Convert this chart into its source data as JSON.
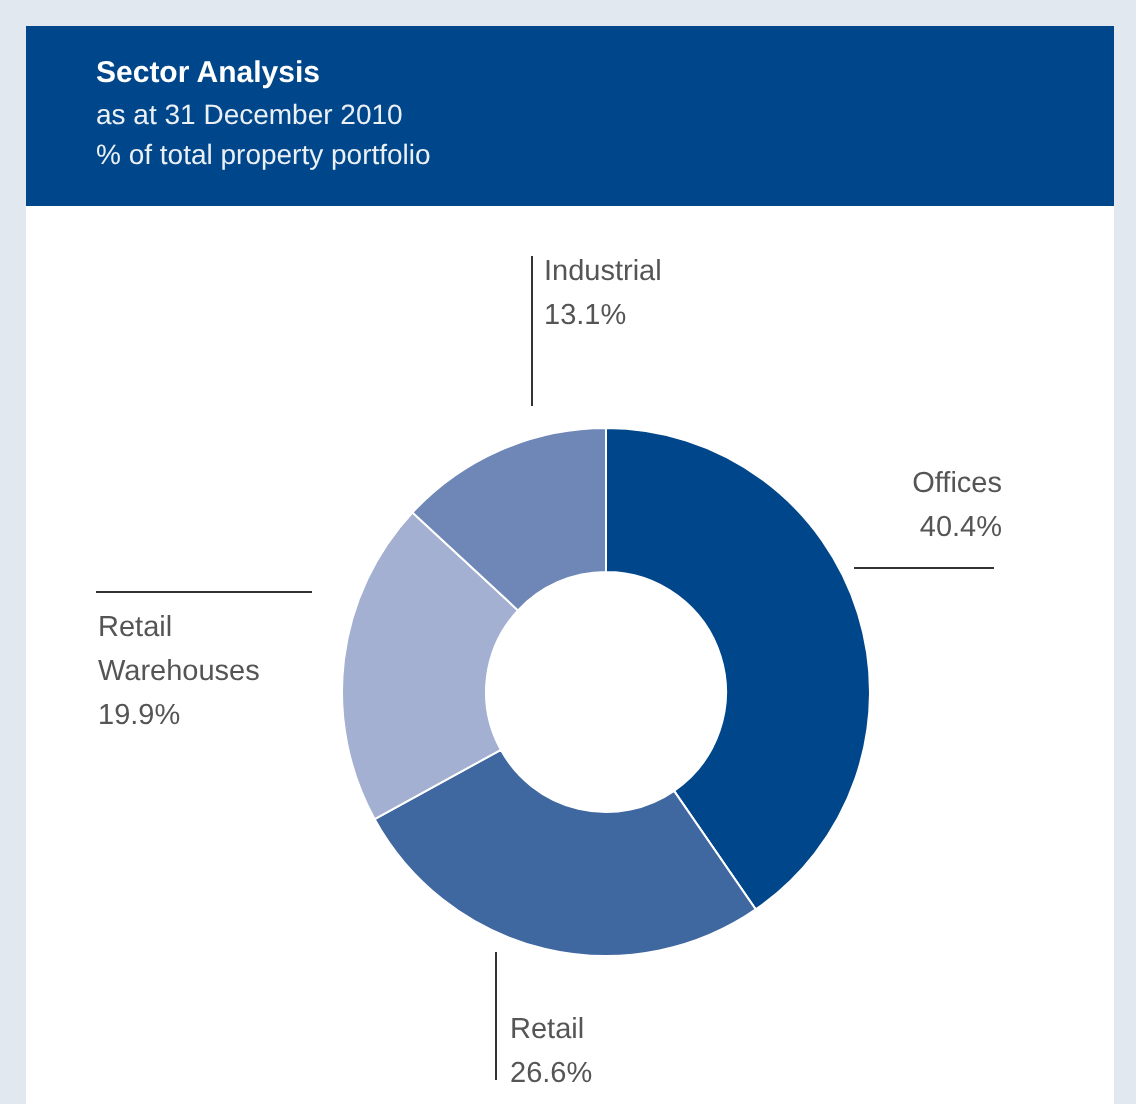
{
  "chart_data": {
    "type": "donut",
    "title": "Sector Analysis",
    "subtitle": "as at 31 December 2010\n% of total property portfolio",
    "categories": [
      "Offices",
      "Retail",
      "Retail Warehouses",
      "Industrial"
    ],
    "values": [
      40.4,
      26.6,
      19.9,
      13.1
    ],
    "value_labels": [
      "40.4%",
      "26.6%",
      "19.9%",
      "13.1%"
    ],
    "colors": [
      "#00468a",
      "#3f67a0",
      "#a3b0d2",
      "#6e87b7"
    ]
  }
}
